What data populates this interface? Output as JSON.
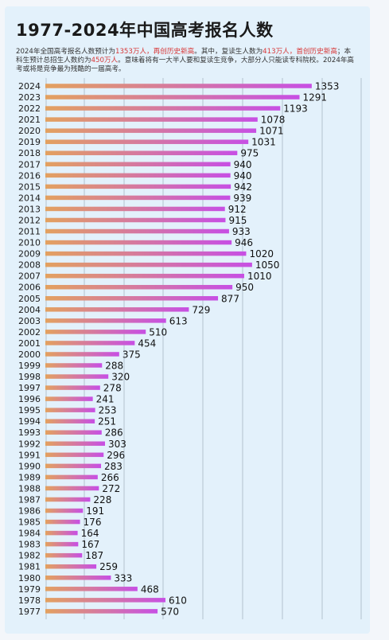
{
  "header": {
    "title": "1977-2024年中国高考报名人数",
    "desc_parts": [
      {
        "text": "2024年全国高考报名人数预计为",
        "hl": false
      },
      {
        "text": "1353万人，再创历史新高",
        "hl": true
      },
      {
        "text": "。其中，复读生人数为",
        "hl": false
      },
      {
        "text": "413万人，首创历史新高",
        "hl": true
      },
      {
        "text": "；本科生预计总招生人数约为",
        "hl": false
      },
      {
        "text": "450万人",
        "hl": true
      },
      {
        "text": "。意味着将有一大半人要和复读生竞争，大部分人只能读专科院校。2024年高考或将是竞争最为残酷的一届高考。",
        "hl": false
      }
    ]
  },
  "colors": {
    "bar_start": "#e3a15f",
    "bar_end": "#c74fe4",
    "highlight": "#d83a3a",
    "grid": "#a7b6c4"
  },
  "chart_data": {
    "type": "bar",
    "orientation": "horizontal",
    "categories": [
      "2024",
      "2023",
      "2022",
      "2021",
      "2020",
      "2019",
      "2018",
      "2017",
      "2016",
      "2015",
      "2014",
      "2013",
      "2012",
      "2011",
      "2010",
      "2009",
      "2008",
      "2007",
      "2006",
      "2005",
      "2004",
      "2003",
      "2002",
      "2001",
      "2000",
      "1999",
      "1998",
      "1997",
      "1996",
      "1995",
      "1994",
      "1993",
      "1992",
      "1991",
      "1990",
      "1989",
      "1988",
      "1987",
      "1986",
      "1985",
      "1984",
      "1983",
      "1982",
      "1981",
      "1980",
      "1979",
      "1978",
      "1977"
    ],
    "values": [
      1353,
      1291,
      1193,
      1078,
      1071,
      1031,
      975,
      940,
      940,
      942,
      939,
      912,
      915,
      933,
      946,
      1020,
      1050,
      1010,
      950,
      877,
      729,
      613,
      510,
      454,
      375,
      288,
      320,
      278,
      241,
      253,
      251,
      286,
      303,
      296,
      283,
      266,
      272,
      228,
      191,
      176,
      164,
      167,
      187,
      259,
      333,
      468,
      610,
      570
    ],
    "data_labels": [
      "1353",
      "1291",
      "1193",
      "1078",
      "1071",
      "1031",
      "975",
      "940",
      "940",
      "942",
      "939",
      "912",
      "915",
      "933",
      "946",
      "1020",
      "1050",
      "1010",
      "950",
      "877",
      "729",
      "613",
      "510",
      "454",
      "375",
      "288",
      "320",
      "278",
      "241",
      "253",
      "251",
      "286",
      "303",
      "296",
      "283",
      "266",
      "272",
      "228",
      "191",
      "176",
      "164",
      "167",
      "187",
      "259",
      "333",
      "468",
      "610",
      "570"
    ],
    "grid": true,
    "title": "",
    "xlabel": "",
    "ylabel": ""
  }
}
